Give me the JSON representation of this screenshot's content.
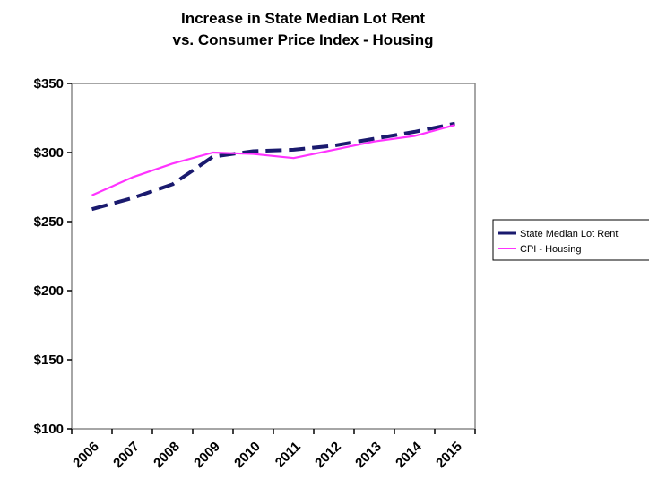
{
  "chart_data": {
    "type": "line",
    "title": [
      "Increase in State Median Lot Rent",
      "vs. Consumer Price Index - Housing"
    ],
    "xlabel": "",
    "ylabel": "",
    "categories": [
      "2006",
      "2007",
      "2008",
      "2009",
      "2010",
      "2011",
      "2012",
      "2013",
      "2014",
      "2015"
    ],
    "ylim": [
      100,
      350
    ],
    "yticks": [
      100,
      150,
      200,
      250,
      300,
      350
    ],
    "ytick_labels": [
      "$100",
      "$150",
      "$200",
      "$250",
      "$300",
      "$350"
    ],
    "grid": false,
    "legend_position": "right",
    "series": [
      {
        "name": "State Median Lot Rent",
        "values": [
          259,
          267,
          277,
          297,
          301,
          302,
          305,
          310,
          315,
          321
        ],
        "color": "#1a1a6e",
        "style": "dashed"
      },
      {
        "name": "CPI - Housing",
        "values": [
          269,
          282,
          292,
          300,
          299,
          296,
          302,
          308,
          312,
          320
        ],
        "color": "#ff33ff",
        "style": "solid"
      }
    ]
  }
}
